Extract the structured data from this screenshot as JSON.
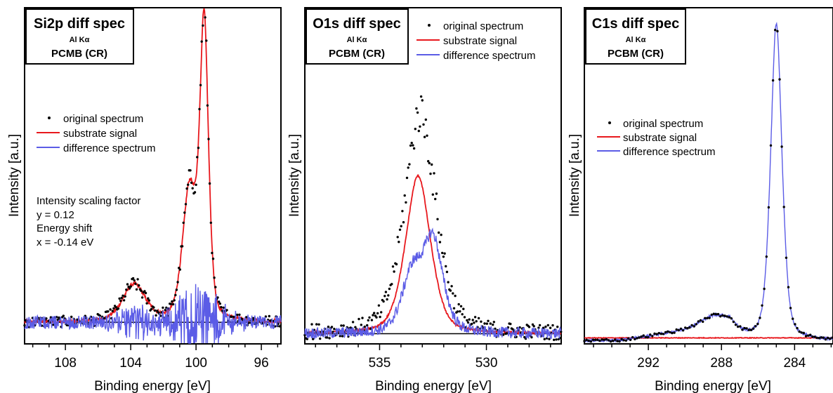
{
  "colors": {
    "original": "#000000",
    "substrate": "#e8181d",
    "difference": "#5b5ce6",
    "baseline": "#000000"
  },
  "chart_data": [
    {
      "type": "line",
      "title": "Si2p diff spec",
      "source": "Al Kα",
      "sample": "PCMB (CR)",
      "xlabel": "Binding energy [eV]",
      "ylabel": "Intensity [a.u.]",
      "xlim": [
        110.5,
        94.8
      ],
      "ylim": [
        -0.07,
        1.02
      ],
      "x_reversed": true,
      "xticks": [
        108,
        104,
        100,
        96
      ],
      "xticks_minor_step": 1,
      "baseline": 0,
      "legend_position": "center-left",
      "legend": [
        "original spectrum",
        "substrate signal",
        "difference spectrum"
      ],
      "annotation": [
        "Intensity scaling factor",
        "y = 0.12",
        "Energy shift",
        "x = -0.14 eV"
      ],
      "series": [
        {
          "name": "substrate signal",
          "kind": "line",
          "peaks": [
            [
              103.8,
              0.12,
              0.75
            ],
            [
              100.4,
              0.42,
              0.45
            ],
            [
              99.5,
              0.95,
              0.28
            ]
          ],
          "noise": 0.006
        },
        {
          "name": "original spectrum",
          "kind": "dots",
          "peaks": [
            [
              103.8,
              0.12,
              0.75
            ],
            [
              100.4,
              0.42,
              0.45
            ],
            [
              99.5,
              0.95,
              0.28
            ]
          ],
          "noise": 0.018,
          "step": 0.07
        },
        {
          "name": "difference spectrum",
          "kind": "line",
          "peaks": [],
          "noise": 0.022,
          "extra_noise": [
            [
              99.8,
              0.06,
              1.2
            ],
            [
              103.6,
              0.025,
              1.0
            ]
          ]
        }
      ]
    },
    {
      "type": "line",
      "title": "O1s diff spec",
      "source": "Al Kα",
      "sample": "PCBM (CR)",
      "xlabel": "Binding energy [eV]",
      "ylabel": "Intensity [a.u.]",
      "xlim": [
        538.5,
        526.5
      ],
      "ylim": [
        -0.04,
        1.28
      ],
      "x_reversed": true,
      "xticks": [
        535,
        530
      ],
      "xticks_minor_step": 1,
      "baseline": 0,
      "legend_position": "top-right",
      "legend": [
        "original spectrum",
        "substrate signal",
        "difference spectrum"
      ],
      "series": [
        {
          "name": "substrate signal",
          "kind": "line",
          "peaks": [
            [
              533.2,
              0.62,
              0.62
            ]
          ],
          "noise": 0.004
        },
        {
          "name": "original spectrum",
          "kind": "dots",
          "peaks": [
            [
              533.1,
              0.87,
              0.78
            ]
          ],
          "noise": 0.03,
          "step": 0.055
        },
        {
          "name": "difference spectrum",
          "kind": "line",
          "peaks": [
            [
              533.5,
              0.22,
              0.5
            ],
            [
              532.5,
              0.36,
              0.5
            ]
          ],
          "noise": 0.022
        }
      ]
    },
    {
      "type": "line",
      "title": "C1s diff spec",
      "source": "Al Kα",
      "sample": "PCBM (CR)",
      "xlabel": "Binding energy [eV]",
      "ylabel": "Intensity [a.u.]",
      "xlim": [
        295.5,
        281.9
      ],
      "ylim": [
        -0.01,
        1.0
      ],
      "x_reversed": true,
      "xticks": [
        292,
        288,
        284
      ],
      "xticks_minor_step": 1,
      "legend_position": "center-left",
      "legend": [
        "original spectrum",
        "substrate signal",
        "difference spectrum"
      ],
      "series": [
        {
          "name": "substrate signal",
          "kind": "line",
          "flat": 0.008,
          "noise": 0.001
        },
        {
          "name": "difference spectrum",
          "kind": "line",
          "peaks": [
            [
              285.0,
              0.95,
              0.33
            ],
            [
              288.4,
              0.03,
              0.8
            ]
          ],
          "shoulder": [
            293.5,
            287.5,
            0.05
          ],
          "noise": 0.004
        },
        {
          "name": "original spectrum",
          "kind": "dots",
          "peaks": [
            [
              285.0,
              0.95,
              0.33
            ],
            [
              288.4,
              0.03,
              0.8
            ]
          ],
          "shoulder": [
            293.5,
            287.5,
            0.05
          ],
          "noise": 0.004,
          "step": 0.12
        }
      ]
    }
  ]
}
